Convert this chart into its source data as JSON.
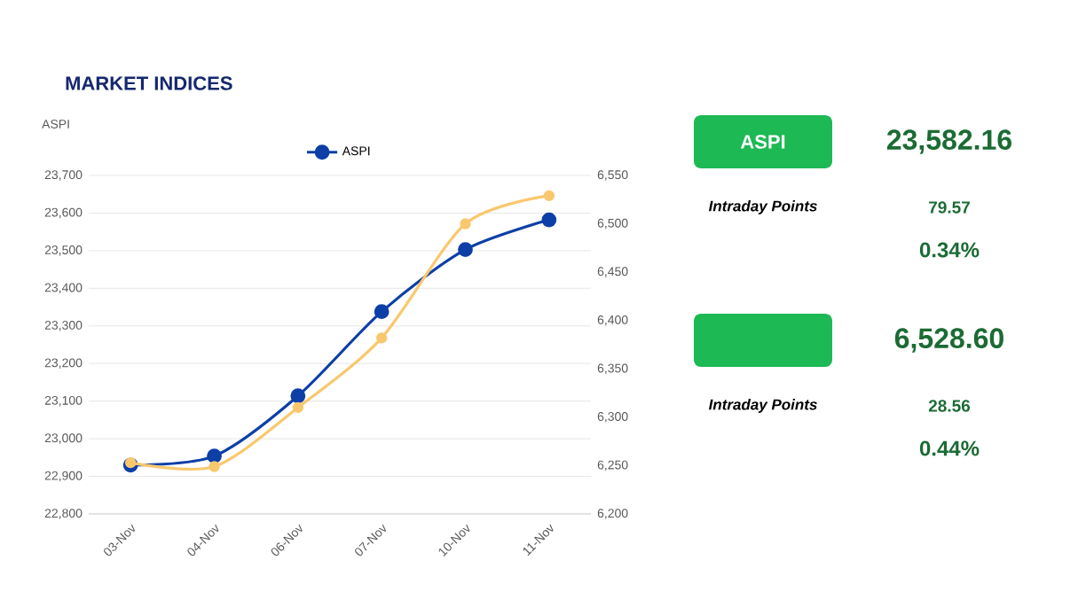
{
  "chart_data": [
    {
      "type": "line",
      "title": "MARKET INDICES",
      "ylabel": "ASPI",
      "categories": [
        "03-Nov",
        "04-Nov",
        "06-Nov",
        "07-Nov",
        "10-Nov",
        "11-Nov"
      ],
      "series": [
        {
          "name": "ASPI",
          "color": "#0d3fa6",
          "values": [
            22930,
            22954,
            23114,
            23338,
            23503,
            23582
          ]
        },
        {
          "color": "#f9c86e",
          "axis": "y2",
          "values": [
            6253,
            6249,
            6310,
            6382,
            6500,
            6529
          ]
        }
      ],
      "ylim": [
        22800,
        23700
      ],
      "yticks": [
        {
          "value": 22800,
          "label": "22,800"
        },
        {
          "value": 22900,
          "label": "22,900"
        },
        {
          "value": 23000,
          "label": "23,000"
        },
        {
          "value": 23100,
          "label": "23,100"
        },
        {
          "value": 23200,
          "label": "23,200"
        },
        {
          "value": 23300,
          "label": "23,300"
        },
        {
          "value": 23400,
          "label": "23,400"
        },
        {
          "value": 23500,
          "label": "23,500"
        },
        {
          "value": 23600,
          "label": "23,600"
        },
        {
          "value": 23700,
          "label": "23,700"
        }
      ],
      "y2lim": [
        6200,
        6550
      ],
      "y2ticks": [
        {
          "value": 6200,
          "label": "6,200"
        },
        {
          "value": 6250,
          "label": "6,250"
        },
        {
          "value": 6300,
          "label": "6,300"
        },
        {
          "value": 6350,
          "label": "6,350"
        },
        {
          "value": 6400,
          "label": "6,400"
        },
        {
          "value": 6450,
          "label": "6,450"
        },
        {
          "value": 6500,
          "label": "6,500"
        },
        {
          "value": 6550,
          "label": "6,550"
        }
      ],
      "grid": "y",
      "legend": "top",
      "marker": "circle",
      "line_style": "solid"
    },
    {
      "type": "other",
      "categories": [
        "ASPI",
        null
      ],
      "annotations": [
        "23,582.16",
        "Intraday Points",
        "79.57",
        "0.34%",
        "6,528.60",
        "Intraday Points",
        "28.56",
        "0.44%"
      ]
    }
  ]
}
